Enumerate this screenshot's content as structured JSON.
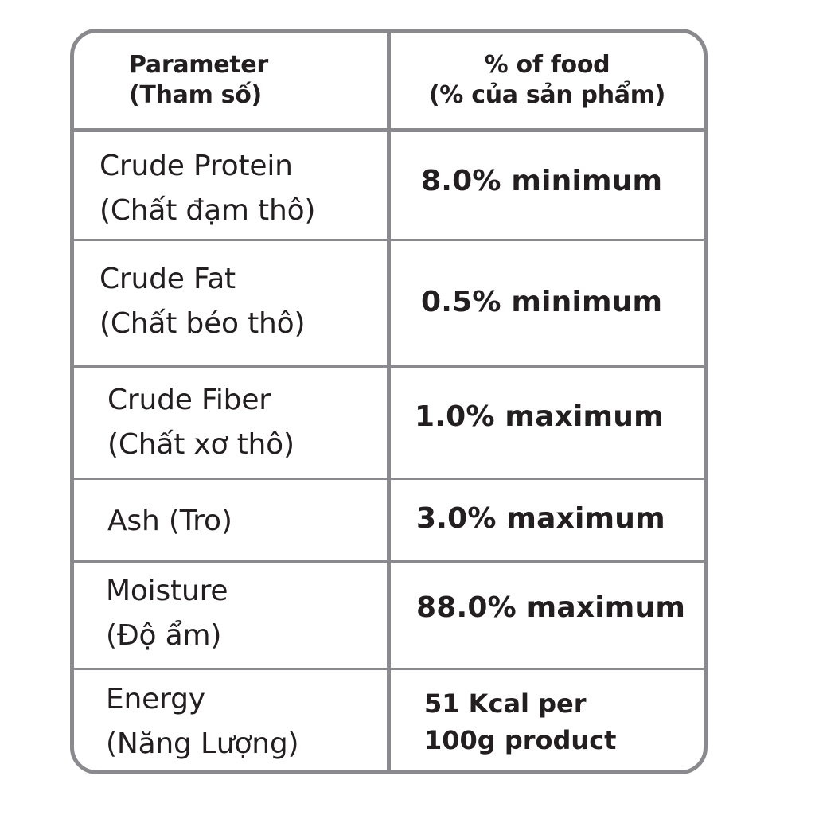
{
  "header": {
    "parameter_en": "Parameter",
    "parameter_vi": "(Tham số)",
    "percent_en": "% of food",
    "percent_vi": "(% của sản phẩm)"
  },
  "rows": [
    {
      "name_en": "Crude Protein",
      "name_vi": "(Chất đạm thô)",
      "value": "8.0% minimum"
    },
    {
      "name_en": "Crude Fat",
      "name_vi": "(Chất béo thô)",
      "value": "0.5% minimum"
    },
    {
      "name_en": "Crude Fiber",
      "name_vi": "(Chất xơ thô)",
      "value": "1.0% maximum"
    },
    {
      "name_en": "Ash (Tro)",
      "value": "3.0% maximum"
    },
    {
      "name_en": "Moisture",
      "name_vi": "(Độ ẩm)",
      "value": "88.0% maximum"
    },
    {
      "name_en": "Energy",
      "name_vi": "(Năng Lượng)",
      "value_line1": "51 Kcal per",
      "value_line2": "100g product"
    }
  ],
  "colors": {
    "border": "#8a8a8e",
    "text": "#231f20"
  }
}
